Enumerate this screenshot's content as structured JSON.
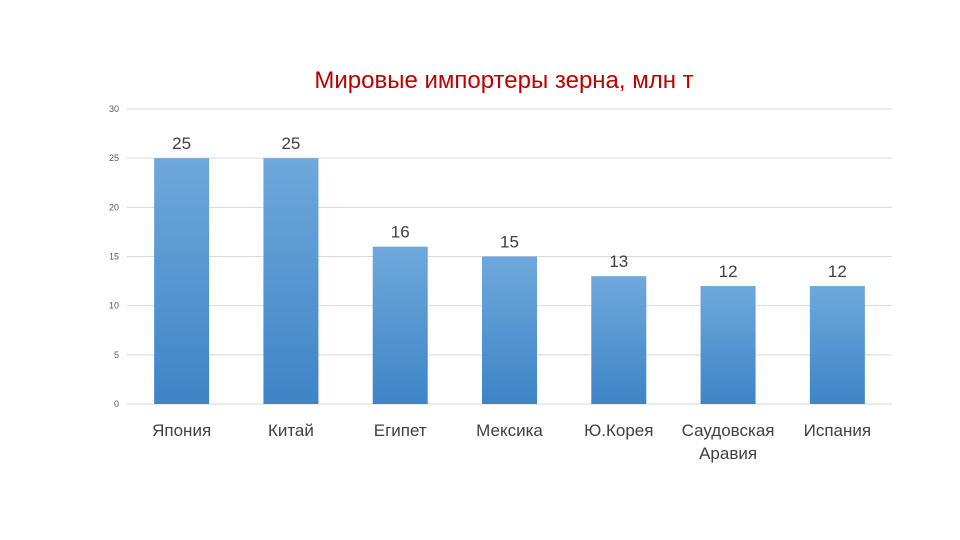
{
  "chart_data": {
    "type": "bar",
    "title": "Мировые импортеры зерна, млн т",
    "categories": [
      [
        "Япония"
      ],
      [
        "Китай"
      ],
      [
        "Египет"
      ],
      [
        "Мексика"
      ],
      [
        "Ю.Корея"
      ],
      [
        "Саудовская",
        "Аравия"
      ],
      [
        "Испания"
      ]
    ],
    "values": [
      25,
      25,
      16,
      15,
      13,
      12,
      12
    ],
    "ylim": [
      0,
      30
    ],
    "yticks": [
      0,
      5,
      10,
      15,
      20,
      25,
      30
    ],
    "grid": true,
    "data_labels": true,
    "colors": {
      "bar_top": "#6fa8dc",
      "bar_bottom": "#3d85c6",
      "grid": "#d9d9d9",
      "title": "#c00000"
    }
  }
}
